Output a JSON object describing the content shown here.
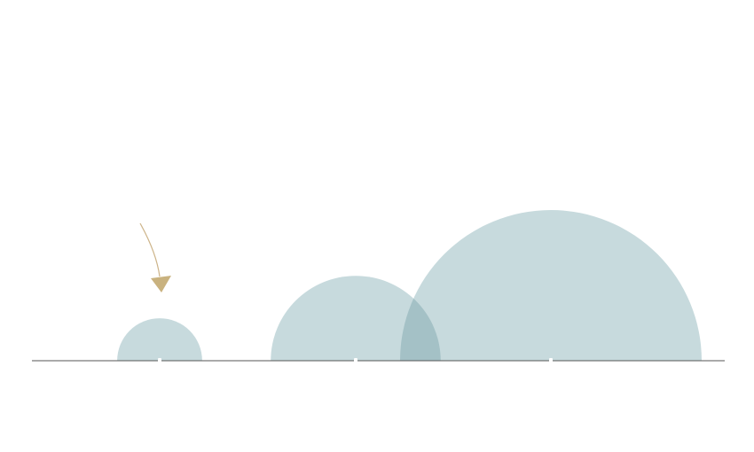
{
  "chart_data": {
    "type": "semicircle",
    "title": "",
    "xlabel": "",
    "ylabel": "",
    "series": [
      {
        "values": [
          1,
          4,
          12.6
        ]
      }
    ],
    "grid": false,
    "legend": "none",
    "annotations": [
      {
        "type": "arrow",
        "points_to_item": 0
      }
    ]
  },
  "colors": {
    "semicircle": "#c7dadd",
    "overlap": "#a4c1c6",
    "baseline": "#555555",
    "arrow": "#c9b27f"
  }
}
